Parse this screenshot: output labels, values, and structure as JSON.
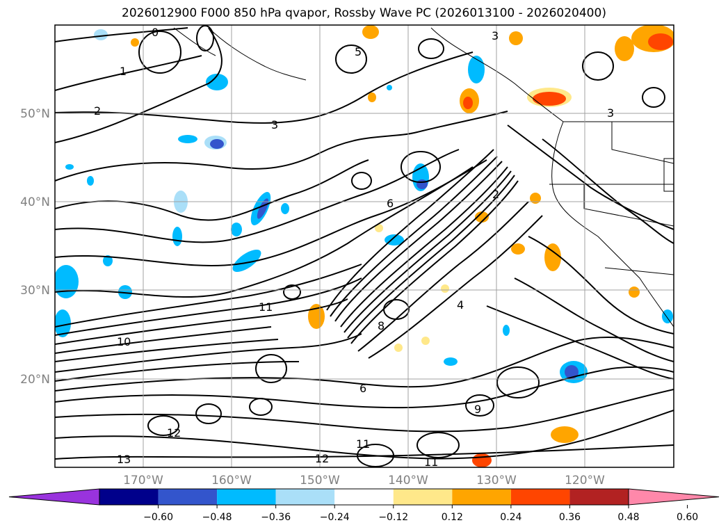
{
  "title": "2026012900 F000 850 hPa qvapor, Rossby Wave PC (2026013100 - 2026020400)",
  "map": {
    "lat_labels": [
      "50°N",
      "40°N",
      "30°N",
      "20°N"
    ],
    "lon_labels": [
      "170°W",
      "160°W",
      "150°W",
      "140°W",
      "130°W",
      "120°W"
    ],
    "grid": true
  },
  "colorbar": {
    "extend": "both",
    "colors": [
      "#9933dd",
      "#00008b",
      "#3355cc",
      "#00bbff",
      "#aadff8",
      "#ffffff",
      "#ffe88a",
      "#ffa500",
      "#ff4500",
      "#b22222",
      "#ff88aa"
    ],
    "tick_labels": [
      "−0.60",
      "−0.48",
      "−0.36",
      "−0.24",
      "−0.12",
      "0.12",
      "0.24",
      "0.36",
      "0.48",
      "0.60"
    ]
  },
  "contour_labels": [
    "0",
    "1",
    "2",
    "3",
    "3",
    "3",
    "5",
    "4",
    "6",
    "11",
    "10",
    "8",
    "9",
    "12",
    "13",
    "12",
    "11",
    "11",
    "6",
    "2"
  ]
}
